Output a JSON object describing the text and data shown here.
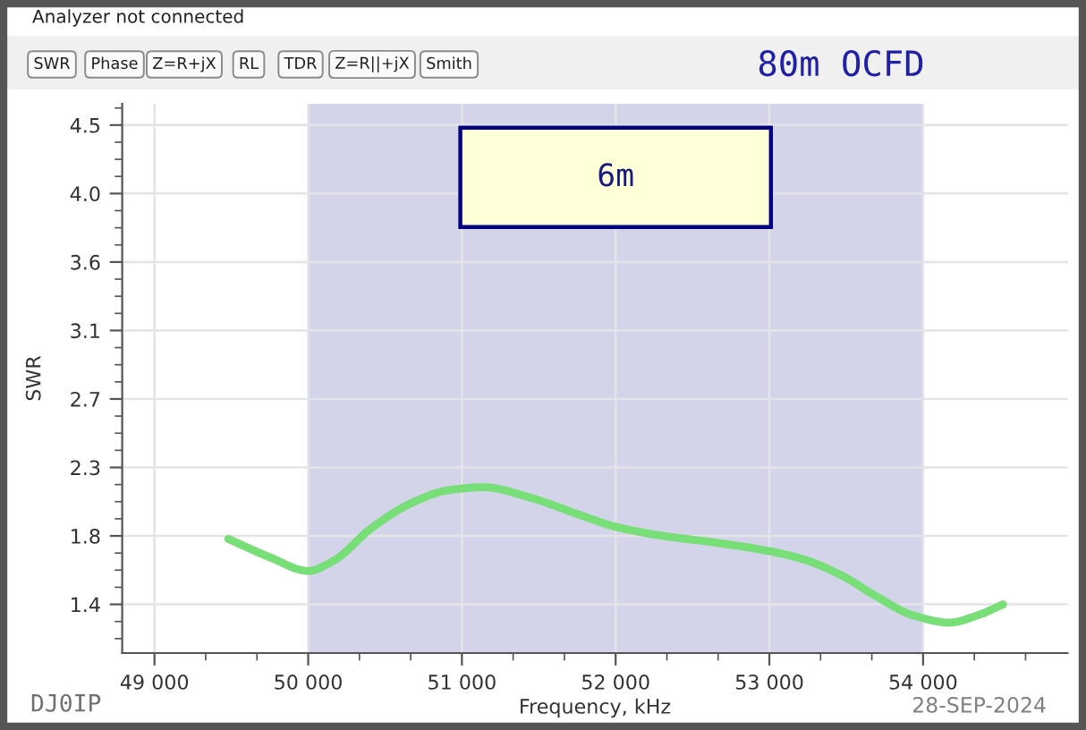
{
  "chart_data": {
    "type": "line",
    "title": "80m OCFD",
    "xlabel": "Frequency, kHz",
    "ylabel": "SWR",
    "x": [
      49480,
      49750,
      50000,
      50170,
      50410,
      50680,
      50910,
      51140,
      51450,
      51760,
      52000,
      52310,
      52620,
      53000,
      53240,
      53470,
      53700,
      53930,
      54170,
      54360,
      54520
    ],
    "series": [
      {
        "color": "#78de78",
        "values": [
          1.78,
          1.66,
          1.57,
          1.64,
          1.85,
          2.02,
          2.1,
          2.12,
          2.05,
          1.94,
          1.86,
          1.8,
          1.76,
          1.7,
          1.64,
          1.54,
          1.4,
          1.28,
          1.23,
          1.28,
          1.35
        ]
      }
    ],
    "xlim": [
      48790,
      54940
    ],
    "ylim": [
      1.03,
      4.64
    ],
    "xticks": [
      {
        "value": 49000,
        "label": "49 000"
      },
      {
        "value": 50000,
        "label": "50 000"
      },
      {
        "value": 51000,
        "label": "51 000"
      },
      {
        "value": 52000,
        "label": "52 000"
      },
      {
        "value": 53000,
        "label": "53 000"
      },
      {
        "value": 54000,
        "label": "54 000"
      }
    ],
    "yticks": [
      {
        "value": 1.35,
        "label": "1.4"
      },
      1.8,
      {
        "value": 2.25,
        "label": "2.3"
      },
      2.7,
      {
        "value": 3.15,
        "label": "3.1"
      },
      3.6,
      {
        "value": 4.05,
        "label": "4.0"
      },
      4.5
    ],
    "grid": true,
    "bands": [
      {
        "axis": "x",
        "from": 50000,
        "to": 54000,
        "label": "6m",
        "color": "#d3d4ea"
      }
    ],
    "annotations": [
      "Analyzer not connected",
      "SWR",
      "Phase",
      "Z=R+jX",
      "RL",
      "TDR",
      "Z=R||+jX",
      "Smith",
      "DJ0IP",
      "28-SEP-2024"
    ]
  }
}
